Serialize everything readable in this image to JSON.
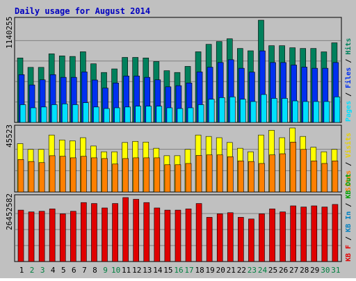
{
  "title": "Daily usage for August 2014",
  "colors": {
    "background": "#c0c0c0",
    "title": "#0000c0",
    "frame": "#000000",
    "hits": "#00805c",
    "files": "#0030f0",
    "pages": "#00e0ff",
    "visits": "#ffff00",
    "sites": "#ff8000",
    "kbin": "#0080c0",
    "kbout": "#00a000",
    "kbf": "#e00000",
    "weekday_label": "#000000",
    "weekend_label": "#008040",
    "separator_slash": "#000000"
  },
  "chart_data": [
    {
      "type": "bar",
      "panel": "hits-files-pages",
      "max_label": "1140255",
      "ylim": [
        0,
        1140255
      ],
      "categories": [
        "1",
        "2",
        "3",
        "4",
        "5",
        "6",
        "7",
        "8",
        "9",
        "10",
        "11",
        "12",
        "13",
        "14",
        "15",
        "16",
        "17",
        "18",
        "19",
        "20",
        "21",
        "22",
        "23",
        "24",
        "25",
        "26",
        "27",
        "28",
        "29",
        "30",
        "31"
      ],
      "weekend_days": [
        "2",
        "3",
        "9",
        "10",
        "16",
        "17",
        "23",
        "24",
        "30",
        "31"
      ],
      "legend": [
        {
          "label": "Pages",
          "color_key": "pages"
        },
        {
          "label": "Files",
          "color_key": "files"
        },
        {
          "label": "Hits",
          "color_key": "hits"
        }
      ],
      "series": [
        {
          "name": "Hits",
          "color_key": "hits",
          "values": [
            719000,
            614000,
            614000,
            765000,
            742000,
            736000,
            788000,
            654000,
            557000,
            597000,
            725000,
            725000,
            719000,
            679000,
            577000,
            557000,
            625000,
            788000,
            871000,
            902000,
            933000,
            825000,
            799000,
            1140255,
            856000,
            856000,
            833000,
            825000,
            825000,
            787000,
            888000
          ]
        },
        {
          "name": "Files",
          "color_key": "files",
          "values": [
            533000,
            418000,
            475000,
            533000,
            503000,
            503000,
            563000,
            473000,
            383000,
            440000,
            518000,
            518000,
            503000,
            475000,
            397000,
            410000,
            440000,
            563000,
            616000,
            668000,
            699000,
            604000,
            561000,
            798000,
            668000,
            668000,
            640000,
            617000,
            604000,
            604000,
            668000
          ]
        },
        {
          "name": "Pages",
          "color_key": "pages",
          "values": [
            198000,
            163000,
            172000,
            198000,
            207000,
            198000,
            220000,
            172000,
            155000,
            163000,
            172000,
            181000,
            181000,
            181000,
            163000,
            155000,
            163000,
            198000,
            259000,
            277000,
            285000,
            259000,
            233000,
            311000,
            268000,
            268000,
            240000,
            233000,
            233000,
            233000,
            285000
          ]
        }
      ]
    },
    {
      "type": "bar",
      "panel": "visits-sites",
      "max_label": "45523",
      "ylim": [
        0,
        45523
      ],
      "categories": [
        "1",
        "2",
        "3",
        "4",
        "5",
        "6",
        "7",
        "8",
        "9",
        "10",
        "11",
        "12",
        "13",
        "14",
        "15",
        "16",
        "17",
        "18",
        "19",
        "20",
        "21",
        "22",
        "23",
        "24",
        "25",
        "26",
        "27",
        "28",
        "29",
        "30",
        "31"
      ],
      "legend": [
        {
          "label": "Sites",
          "color_key": "sites"
        },
        {
          "label": "Visits",
          "color_key": "visits"
        }
      ],
      "series": [
        {
          "name": "Visits",
          "color_key": "visits",
          "values": [
            34400,
            30300,
            30300,
            40500,
            37000,
            36400,
            38600,
            32700,
            28600,
            28600,
            35200,
            36000,
            35500,
            31100,
            25800,
            25800,
            30300,
            40500,
            39500,
            38600,
            35200,
            31100,
            28600,
            40500,
            43900,
            38600,
            45523,
            39500,
            31800,
            28600,
            30300
          ]
        },
        {
          "name": "Sites",
          "color_key": "sites",
          "values": [
            23100,
            21700,
            20900,
            25800,
            25400,
            24300,
            25400,
            24300,
            23800,
            19900,
            23800,
            24300,
            24300,
            24300,
            19400,
            19400,
            20300,
            26000,
            26400,
            26400,
            25100,
            22100,
            21700,
            20300,
            26400,
            27200,
            35500,
            30300,
            22100,
            20300,
            22100
          ]
        }
      ]
    },
    {
      "type": "bar",
      "panel": "kbf",
      "max_label": "26452582",
      "ylim": [
        0,
        26452582
      ],
      "categories": [
        "1",
        "2",
        "3",
        "4",
        "5",
        "6",
        "7",
        "8",
        "9",
        "10",
        "11",
        "12",
        "13",
        "14",
        "15",
        "16",
        "17",
        "18",
        "19",
        "20",
        "21",
        "22",
        "23",
        "24",
        "25",
        "26",
        "27",
        "28",
        "29",
        "30",
        "31"
      ],
      "legend": [
        {
          "label": "KB F",
          "color_key": "kbf"
        },
        {
          "label": "KB In",
          "color_key": "kbin"
        },
        {
          "label": "KB Out",
          "color_key": "kbout"
        }
      ],
      "series": [
        {
          "name": "KB F",
          "color_key": "kbf",
          "values": [
            21260000,
            20520000,
            20780000,
            21770000,
            19720000,
            20780000,
            24380000,
            23990000,
            22150000,
            23990000,
            26452582,
            25740000,
            24380000,
            22150000,
            21260000,
            21260000,
            21770000,
            23990000,
            18280000,
            19720000,
            20200000,
            18280000,
            17590000,
            19720000,
            21770000,
            20520000,
            23010000,
            22540000,
            23010000,
            22540000,
            23600000
          ]
        }
      ]
    }
  ]
}
